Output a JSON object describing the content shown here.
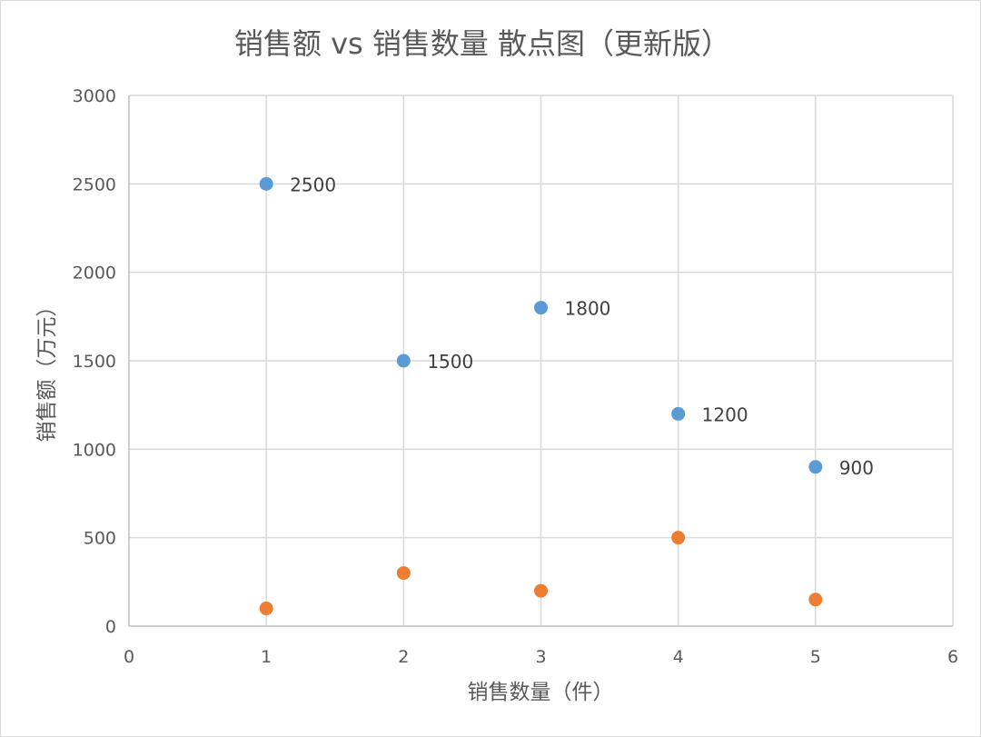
{
  "chart_data": {
    "type": "scatter",
    "title": "销售额 vs 销售数量 散点图（更新版）",
    "xlabel": "销售数量（件）",
    "ylabel": "销售额（万元）",
    "xlim": [
      0,
      6
    ],
    "ylim": [
      0,
      3000
    ],
    "x_ticks": [
      0,
      1,
      2,
      3,
      4,
      5,
      6
    ],
    "y_ticks": [
      0,
      500,
      1000,
      1500,
      2000,
      2500,
      3000
    ],
    "grid": true,
    "legend": "none",
    "series": [
      {
        "color": "#5b9bd5",
        "x": [
          1,
          2,
          3,
          4,
          5
        ],
        "y": [
          2500,
          1500,
          1800,
          1200,
          900
        ],
        "data_labels": true
      },
      {
        "color": "#ed7d31",
        "x": [
          1,
          2,
          3,
          4,
          5
        ],
        "y": [
          100,
          300,
          200,
          500,
          150
        ],
        "data_labels": false
      }
    ]
  }
}
